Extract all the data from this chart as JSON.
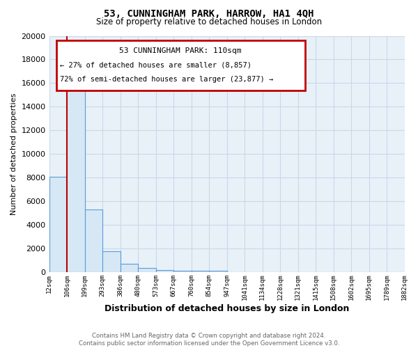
{
  "title": "53, CUNNINGHAM PARK, HARROW, HA1 4QH",
  "subtitle": "Size of property relative to detached houses in London",
  "xlabel": "Distribution of detached houses by size in London",
  "ylabel": "Number of detached properties",
  "bar_values": [
    8057,
    16500,
    5300,
    1750,
    700,
    350,
    190,
    130,
    100,
    120,
    0,
    0,
    0,
    0,
    0,
    0,
    0,
    0,
    0,
    0
  ],
  "bar_labels": [
    "12sqm",
    "106sqm",
    "199sqm",
    "293sqm",
    "386sqm",
    "480sqm",
    "573sqm",
    "667sqm",
    "760sqm",
    "854sqm",
    "947sqm",
    "1041sqm",
    "1134sqm",
    "1228sqm",
    "1321sqm",
    "1415sqm",
    "1508sqm",
    "1602sqm",
    "1695sqm",
    "1789sqm",
    "1882sqm"
  ],
  "bar_color": "#d6e8f5",
  "bar_edge_color": "#5b9bd5",
  "property_line_color": "#c00000",
  "annotation_title": "53 CUNNINGHAM PARK: 110sqm",
  "annotation_line1": "← 27% of detached houses are smaller (8,857)",
  "annotation_line2": "72% of semi-detached houses are larger (23,877) →",
  "annotation_box_color": "#c00000",
  "ylim": [
    0,
    20000
  ],
  "yticks": [
    0,
    2000,
    4000,
    6000,
    8000,
    10000,
    12000,
    14000,
    16000,
    18000,
    20000
  ],
  "footer1": "Contains HM Land Registry data © Crown copyright and database right 2024.",
  "footer2": "Contains public sector information licensed under the Open Government Licence v3.0.",
  "plot_bg_color": "#e8f1f8",
  "grid_color": "#c8d8e8"
}
